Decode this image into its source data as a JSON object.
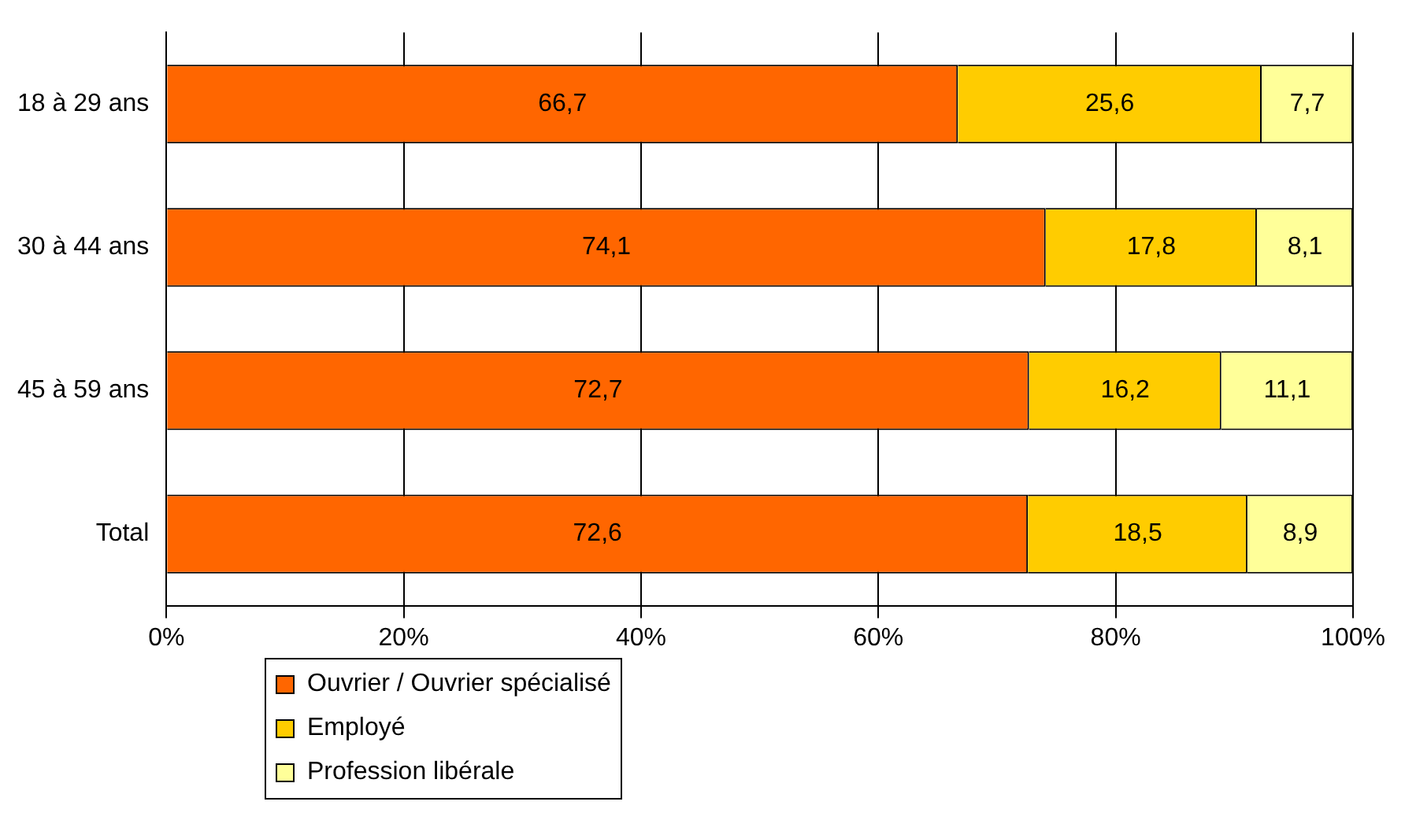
{
  "chart_data": {
    "type": "bar",
    "orientation": "horizontal",
    "stacked": true,
    "categories": [
      "18 à 29 ans",
      "30 à 44 ans",
      "45 à 59 ans",
      "Total"
    ],
    "series": [
      {
        "name": "Ouvrier / Ouvrier spécialisé",
        "color": "#ff6600",
        "values": [
          66.7,
          74.1,
          72.7,
          72.6
        ],
        "value_labels": [
          "66,7",
          "74,1",
          "72,7",
          "72,6"
        ]
      },
      {
        "name": "Employé",
        "color": "#ffcc00",
        "values": [
          25.6,
          17.8,
          16.2,
          18.5
        ],
        "value_labels": [
          "25,6",
          "17,8",
          "16,2",
          "18,5"
        ]
      },
      {
        "name": "Profession libérale",
        "color": "#ffff99",
        "values": [
          7.7,
          8.1,
          11.1,
          8.9
        ],
        "value_labels": [
          "7,7",
          "8,1",
          "11,1",
          "8,9"
        ]
      }
    ],
    "xlim": [
      0,
      100
    ],
    "xticks": [
      {
        "value": 0,
        "label": "0%"
      },
      {
        "value": 20,
        "label": "20%"
      },
      {
        "value": 40,
        "label": "40%"
      },
      {
        "value": 60,
        "label": "60%"
      },
      {
        "value": 80,
        "label": "80%"
      },
      {
        "value": 100,
        "label": "100%"
      }
    ],
    "grid": "x",
    "legend": "bottom left"
  }
}
